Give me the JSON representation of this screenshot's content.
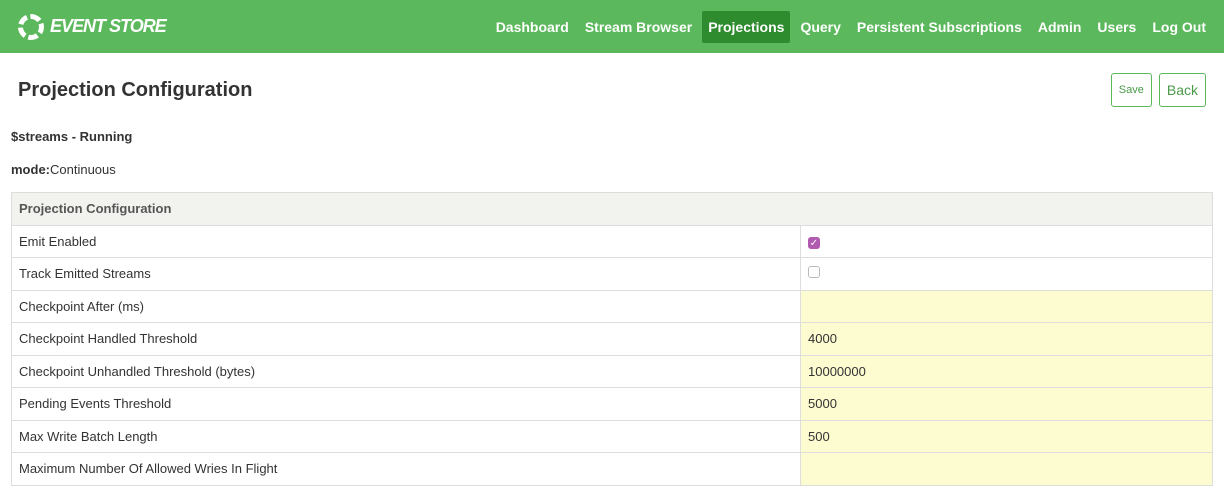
{
  "brand": "EVENT STORE",
  "nav": [
    "Dashboard",
    "Stream Browser",
    "Projections",
    "Query",
    "Persistent Subscriptions",
    "Admin",
    "Users",
    "Log Out"
  ],
  "active_nav": "Projections",
  "title": "Projection Configuration",
  "save": "Save",
  "back": "Back",
  "status": "$streams - Running",
  "mode_label": "mode:",
  "mode_value": "Continuous",
  "table_header": "Projection Configuration",
  "emit_enabled": {
    "label": "Emit Enabled",
    "checked": true
  },
  "track_emitted": {
    "label": "Track Emitted Streams",
    "checked": false
  },
  "rows": [
    {
      "label": "Checkpoint After (ms)",
      "value": ""
    },
    {
      "label": "Checkpoint Handled Threshold",
      "value": "4000"
    },
    {
      "label": "Checkpoint Unhandled Threshold (bytes)",
      "value": "10000000"
    },
    {
      "label": "Pending Events Threshold",
      "value": "5000"
    },
    {
      "label": "Max Write Batch Length",
      "value": "500"
    },
    {
      "label": "Maximum Number Of Allowed Wries In Flight",
      "value": ""
    }
  ]
}
